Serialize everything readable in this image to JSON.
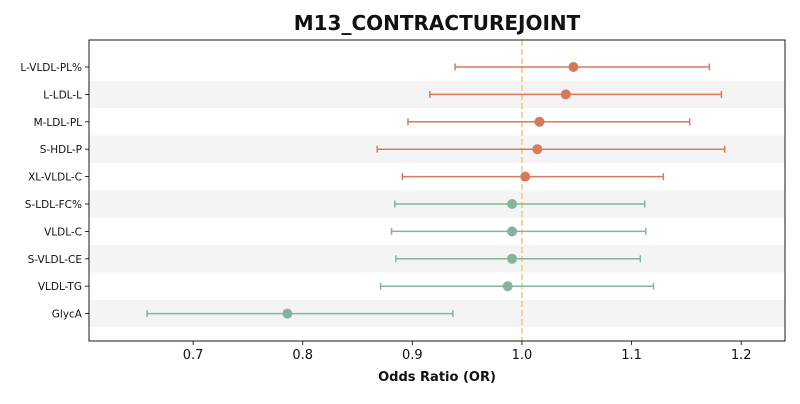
{
  "chart_data": {
    "type": "scatter",
    "subtype": "forest-plot",
    "title": "M13_CONTRACTUREJOINT",
    "xlabel": "Odds Ratio (OR)",
    "ylabel": "",
    "xlim": [
      0.605,
      1.24
    ],
    "xticks": [
      0.7,
      0.8,
      0.9,
      1.0,
      1.1,
      1.2
    ],
    "xtick_labels": [
      "0.7",
      "0.8",
      "0.9",
      "1.0",
      "1.1",
      "1.2"
    ],
    "reference_line": 1.0,
    "grid": false,
    "row_banding": true,
    "colors": {
      "risk": "#d9785a",
      "protective": "#84b59c",
      "reference": "#f5c780",
      "band": "#f4f4f4",
      "axis": "#000000"
    },
    "rows": [
      {
        "label": "L-VLDL-PL%",
        "or": 1.047,
        "lo": 0.939,
        "hi": 1.171,
        "group": "risk"
      },
      {
        "label": "L-LDL-L",
        "or": 1.04,
        "lo": 0.916,
        "hi": 1.182,
        "group": "risk"
      },
      {
        "label": "M-LDL-PL",
        "or": 1.016,
        "lo": 0.896,
        "hi": 1.153,
        "group": "risk"
      },
      {
        "label": "S-HDL-P",
        "or": 1.014,
        "lo": 0.868,
        "hi": 1.185,
        "group": "risk"
      },
      {
        "label": "XL-VLDL-C",
        "or": 1.003,
        "lo": 0.891,
        "hi": 1.129,
        "group": "risk"
      },
      {
        "label": "S-LDL-FC%",
        "or": 0.991,
        "lo": 0.884,
        "hi": 1.112,
        "group": "protective"
      },
      {
        "label": "VLDL-C",
        "or": 0.991,
        "lo": 0.881,
        "hi": 1.113,
        "group": "protective"
      },
      {
        "label": "S-VLDL-CE",
        "or": 0.991,
        "lo": 0.885,
        "hi": 1.108,
        "group": "protective"
      },
      {
        "label": "VLDL-TG",
        "or": 0.987,
        "lo": 0.871,
        "hi": 1.12,
        "group": "protective"
      },
      {
        "label": "GlycA",
        "or": 0.786,
        "lo": 0.658,
        "hi": 0.937,
        "group": "protective"
      }
    ]
  }
}
